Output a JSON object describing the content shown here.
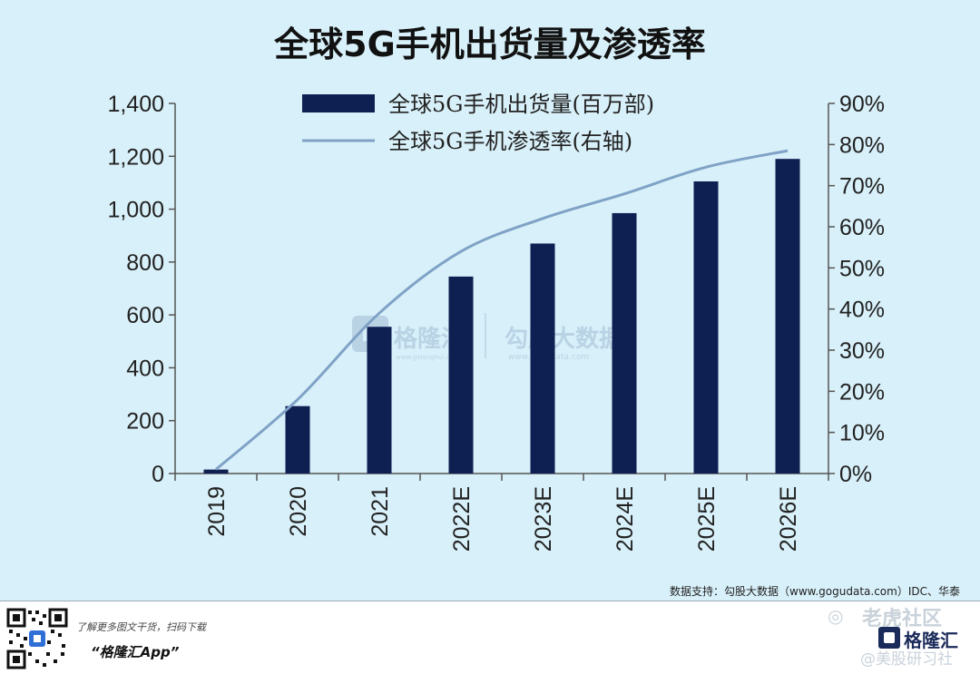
{
  "chart_data": {
    "type": "bar",
    "title": "全球5G手机出货量及渗透率",
    "categories": [
      "2019",
      "2020",
      "2021",
      "2022E",
      "2023E",
      "2024E",
      "2025E",
      "2026E"
    ],
    "series": [
      {
        "name": "全球5G手机出货量(百万部)",
        "type": "bar",
        "axis": "left",
        "color": "#0e1f52",
        "values": [
          15,
          255,
          555,
          745,
          870,
          985,
          1105,
          1190
        ]
      },
      {
        "name": "全球5G手机渗透率(右轴)",
        "type": "line",
        "axis": "right",
        "color": "#7fa2c6",
        "values": [
          1,
          18,
          39,
          54,
          62,
          68,
          74.5,
          78.5
        ]
      }
    ],
    "y_left": {
      "range": [
        0,
        1400
      ],
      "ticks": [
        0,
        200,
        400,
        600,
        800,
        1000,
        1200,
        1400
      ],
      "tick_labels": [
        "0",
        "200",
        "400",
        "600",
        "800",
        "1,000",
        "1,200",
        "1,400"
      ]
    },
    "y_right": {
      "range": [
        0,
        90
      ],
      "ticks": [
        0,
        10,
        20,
        30,
        40,
        50,
        60,
        70,
        80,
        90
      ],
      "tick_labels": [
        "0%",
        "10%",
        "20%",
        "30%",
        "40%",
        "50%",
        "60%",
        "70%",
        "80%",
        "90%"
      ]
    },
    "legend_position": "top-center",
    "grid": false
  },
  "source": "数据支持：勾股大数据（www.gogudata.com）IDC、华泰",
  "promo": {
    "line1": "了解更多图文干货，扫码下载",
    "line2": "“格隆汇App”"
  },
  "watermarks": {
    "center_brand": "格隆汇",
    "center_brand_sub": "www.gelonghui.com",
    "center_data": "勾股大数据",
    "center_data_sub": "www.gogudata.com",
    "tiger": "老虎社区",
    "handle": "@美股研习社",
    "logo": "格隆汇"
  }
}
